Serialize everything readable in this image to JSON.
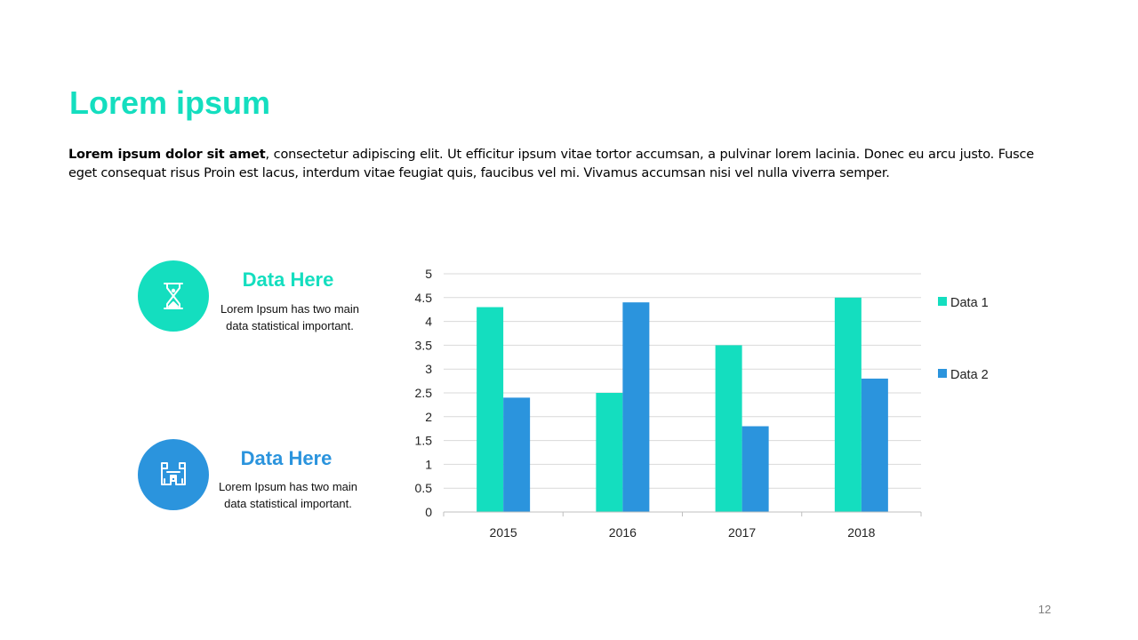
{
  "slide": {
    "title": "Lorem ipsum",
    "intro_bold": "Lorem ipsum dolor sit amet",
    "intro_rest": ", consectetur adipiscing elit. Ut efficitur ipsum vitae tortor accumsan, a pulvinar lorem lacinia. Donec eu arcu justo. Fusce eget consequat risus Proin est lacus, interdum vitae feugiat quis, faucibus vel mi.  Vivamus accumsan nisi vel nulla viverra semper.",
    "page_number": "12"
  },
  "colors": {
    "teal": "#14DEBF",
    "blue": "#2B94DD",
    "gridline": "#D9D9D9",
    "axis": "#BFBFBF"
  },
  "cards": [
    {
      "icon": "hourglass-icon",
      "title": "Data Here",
      "text": "Lorem Ipsum has two main data statistical important."
    },
    {
      "icon": "binoculars-icon",
      "title": "Data Here",
      "text": "Lorem Ipsum has two main data statistical important."
    }
  ],
  "chart_data": {
    "type": "bar",
    "categories": [
      "2015",
      "2016",
      "2017",
      "2018"
    ],
    "series": [
      {
        "name": "Data 1",
        "values": [
          4.3,
          2.5,
          3.5,
          4.5
        ]
      },
      {
        "name": "Data 2",
        "values": [
          2.4,
          4.4,
          1.8,
          2.8
        ]
      }
    ],
    "ylim": [
      0,
      5
    ],
    "yticks": [
      "0",
      "0.5",
      "1",
      "1.5",
      "2",
      "2.5",
      "3",
      "3.5",
      "4",
      "4.5",
      "5"
    ],
    "grid": true,
    "legend": "right"
  }
}
